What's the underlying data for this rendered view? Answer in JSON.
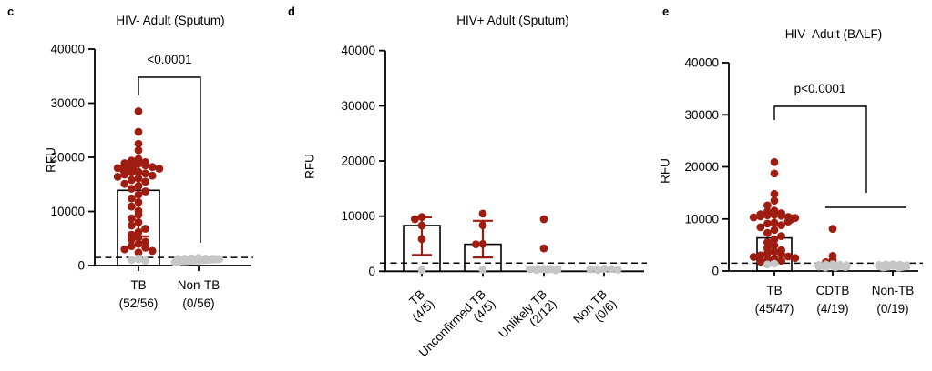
{
  "colors": {
    "positive_dot": "#9e1c10",
    "negative_dot": "#c6c6c6",
    "axis": "#000000",
    "error_bar": "#9e1c10",
    "threshold_line": "#000000",
    "bar_fill": "none",
    "bar_stroke": "#000000"
  },
  "chart_data": [
    {
      "type": "bar-scatter",
      "panel_letter": "c",
      "title": "HIV- Adult (Sputum)",
      "ylabel": "RFU",
      "ylim": [
        0,
        40000
      ],
      "yticks": [
        0,
        10000,
        20000,
        30000,
        40000
      ],
      "grid": false,
      "legend": false,
      "threshold_line": 1500,
      "groups": [
        {
          "label": "TB",
          "count_label": "(52/56)",
          "bar_mean": 13900,
          "error_low": 5400,
          "error_high": 18500,
          "points_positive": [
            28500,
            24700,
            22500,
            21300,
            19700,
            19400,
            19100,
            18900,
            18800,
            18600,
            18500,
            18300,
            18200,
            18000,
            17900,
            17800,
            17600,
            17500,
            17300,
            17200,
            17000,
            16800,
            16600,
            16400,
            16100,
            15800,
            15500,
            15100,
            14700,
            14200,
            13700,
            13100,
            12400,
            11700,
            10900,
            10100,
            9400,
            8700,
            8000,
            7400,
            6800,
            6200,
            5700,
            5200,
            4800,
            4400,
            4000,
            3600,
            3300,
            3000,
            2700,
            2400
          ],
          "points_negative": [
            1350,
            1200,
            1050,
            900
          ]
        },
        {
          "label": "Non-TB",
          "count_label": "(0/56)",
          "bar_mean": null,
          "error_low": null,
          "error_high": null,
          "points_positive": [],
          "points_negative": [
            1400,
            1350,
            1320,
            1300,
            1280,
            1260,
            1240,
            1220,
            1200,
            1190,
            1180,
            1170,
            1160,
            1150,
            1140,
            1130,
            1120,
            1110,
            1100,
            1090,
            1080,
            1070,
            1060,
            1050,
            1040,
            1030,
            1020,
            1010,
            1000,
            990,
            980,
            970,
            960,
            950,
            940,
            930,
            920,
            910,
            900,
            890,
            880,
            870,
            860,
            850,
            840,
            830,
            820,
            810,
            800,
            780,
            760,
            740,
            720,
            700,
            650,
            600
          ]
        }
      ],
      "significance": {
        "label": "<0.0001",
        "between": [
          "TB",
          "Non-TB"
        ]
      }
    },
    {
      "type": "bar-scatter",
      "panel_letter": "d",
      "title": "HIV+ Adult (Sputum)",
      "ylabel": "RFU",
      "ylim": [
        0,
        40000
      ],
      "yticks": [
        0,
        10000,
        20000,
        30000,
        40000
      ],
      "grid": false,
      "legend": false,
      "threshold_line": 1500,
      "groups": [
        {
          "label": "TB",
          "count_label": "(4/5)",
          "bar_mean": 8300,
          "error_low": 2950,
          "error_high": 9800,
          "points_positive": [
            9850,
            9450,
            8300,
            5850
          ],
          "points_negative": [
            250
          ]
        },
        {
          "label": "Unconfirmed TB",
          "count_label": "(4/5)",
          "bar_mean": 4900,
          "error_low": 2500,
          "error_high": 9150,
          "points_positive": [
            10450,
            8350,
            4950,
            4900
          ],
          "points_negative": [
            300
          ]
        },
        {
          "label": "Unlikely TB",
          "count_label": "(2/12)",
          "bar_mean": null,
          "error_low": null,
          "error_high": null,
          "points_positive": [
            9450,
            4150
          ],
          "points_negative": [
            450,
            420,
            400,
            380,
            350,
            320,
            300,
            280,
            250,
            200
          ]
        },
        {
          "label": "Non TB",
          "count_label": "(0/6)",
          "bar_mean": null,
          "error_low": null,
          "error_high": null,
          "points_positive": [],
          "points_negative": [
            450,
            420,
            390,
            350,
            300,
            250
          ]
        }
      ],
      "significance": null
    },
    {
      "type": "bar-scatter",
      "panel_letter": "e",
      "title": "HIV- Adult (BALF)",
      "ylabel": "RFU",
      "ylim": [
        0,
        40000
      ],
      "yticks": [
        0,
        10000,
        20000,
        30000,
        40000
      ],
      "grid": false,
      "legend": false,
      "threshold_line": 1500,
      "groups": [
        {
          "label": "TB",
          "count_label": "(45/47)",
          "bar_mean": 6350,
          "error_low": null,
          "error_high": null,
          "points_positive": [
            20900,
            18700,
            14800,
            13500,
            12600,
            11600,
            11400,
            11100,
            10900,
            10800,
            10700,
            10600,
            10500,
            10400,
            10300,
            10200,
            10100,
            10000,
            9900,
            9800,
            9700,
            9500,
            9300,
            9100,
            8800,
            8400,
            7900,
            7300,
            6700,
            6100,
            5500,
            4900,
            4400,
            4000,
            3700,
            3400,
            3200,
            3000,
            2800,
            2700,
            2500,
            2400,
            2200,
            2000,
            1800
          ],
          "points_negative": [
            1400,
            1250
          ]
        },
        {
          "label": "CDTB",
          "count_label": "(4/19)",
          "bar_mean": null,
          "error_low": null,
          "error_high": null,
          "points_positive": [
            8100,
            2900,
            2100,
            1700
          ],
          "points_negative": [
            1300,
            1250,
            1200,
            1150,
            1100,
            1050,
            1000,
            950,
            900,
            870,
            840,
            800,
            760,
            720,
            680
          ]
        },
        {
          "label": "Non-TB",
          "count_label": "(0/19)",
          "bar_mean": null,
          "error_low": null,
          "error_high": null,
          "points_positive": [],
          "points_negative": [
            1300,
            1250,
            1200,
            1150,
            1100,
            1060,
            1020,
            990,
            960,
            930,
            900,
            870,
            840,
            810,
            780,
            750,
            720,
            690,
            650
          ]
        }
      ],
      "significance": {
        "label": "p<0.0001",
        "between": [
          "TB",
          "CDTB + Non-TB"
        ]
      }
    }
  ]
}
